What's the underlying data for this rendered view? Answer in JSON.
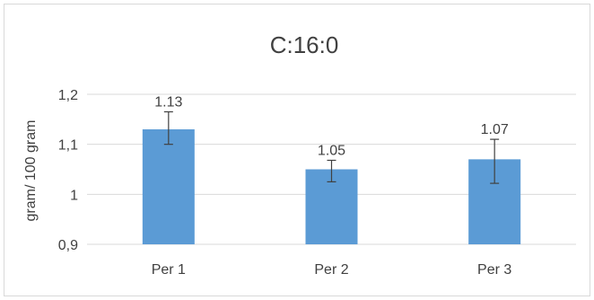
{
  "chart_data": {
    "type": "bar",
    "title": "C:16:0",
    "xlabel": "",
    "ylabel": "gram/ 100 gram",
    "categories": [
      "Per 1",
      "Per 2",
      "Per 3"
    ],
    "values": [
      1.13,
      1.05,
      1.07
    ],
    "data_labels": [
      "1.13",
      "1.05",
      "1.07"
    ],
    "error_low": [
      1.1,
      1.025,
      1.022
    ],
    "error_high": [
      1.165,
      1.068,
      1.11
    ],
    "ylim": [
      0.9,
      1.2
    ],
    "yticks": [
      0.9,
      1.0,
      1.1,
      1.2
    ],
    "ytick_labels": [
      "0,9",
      "1",
      "1,1",
      "1,2"
    ],
    "grid": true,
    "legend": "none",
    "colors": {
      "bar": "#5b9bd5",
      "grid": "#d9d9d9",
      "error_bar": "#404040"
    }
  }
}
